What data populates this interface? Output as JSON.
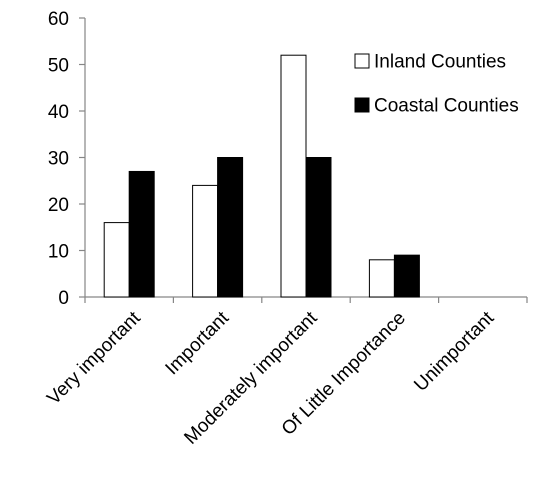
{
  "chart_data": {
    "type": "bar",
    "title": "",
    "xlabel": "",
    "ylabel": "",
    "categories": [
      "Very important",
      "Important",
      "Moderately important",
      "Of Little Importance",
      "Unimportant"
    ],
    "series": [
      {
        "name": "Inland Counties",
        "values": [
          16,
          24,
          52,
          8,
          0
        ],
        "color": "#ffffff"
      },
      {
        "name": "Coastal Counties",
        "values": [
          27,
          30,
          30,
          9,
          0
        ],
        "color": "#000000"
      }
    ],
    "ylim": [
      0,
      60
    ],
    "yticks": [
      "0",
      "10",
      "20",
      "30",
      "40",
      "50",
      "60"
    ],
    "grid": false,
    "legend_position": "top-right"
  }
}
